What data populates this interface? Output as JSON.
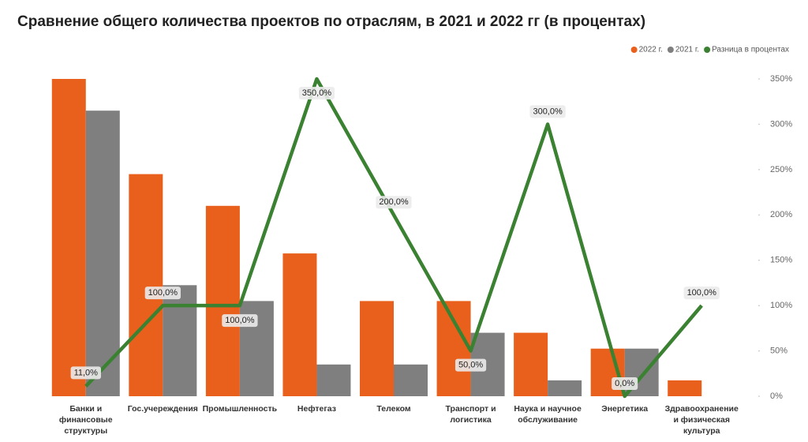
{
  "chart_data": {
    "type": "bar",
    "title": "Сравнение общего количества проектов по отраслям, в 2021 и 2022 гг (в процентах)",
    "categories": [
      "Банки и финансовые структуры",
      "Гос.учереждения",
      "Промышленность",
      "Нефтегаз",
      "Телеком",
      "Транспорт и логистика",
      "Наука и научное обслуживание",
      "Энергетика",
      "Здравоохранение и физическая культура"
    ],
    "series": [
      {
        "name": "2022 г.",
        "color": "#e8601c",
        "values": [
          20,
          14,
          12,
          9,
          6,
          6,
          4,
          3,
          1
        ]
      },
      {
        "name": "2021 г.",
        "color": "#7f7f7f",
        "values": [
          18,
          7,
          6,
          2,
          2,
          4,
          1,
          3,
          0
        ]
      },
      {
        "name": "Разница в процентах",
        "type": "line",
        "axis": "y2",
        "color": "#3b8132",
        "values": [
          11,
          100,
          100,
          350,
          200,
          50,
          300,
          0,
          100
        ],
        "value_labels": [
          "11,0%",
          "100,0%",
          "100,0%",
          "350,0%",
          "200,0%",
          "50,0%",
          "300,0%",
          "0,0%",
          "100,0%"
        ]
      }
    ],
    "ylim": [
      0,
      20
    ],
    "y2lim": [
      0,
      350
    ],
    "y2ticks": [
      {
        "value": 0,
        "label": "0%"
      },
      {
        "value": 50,
        "label": "50%"
      },
      {
        "value": 100,
        "label": "100%"
      },
      {
        "value": 150,
        "label": "150%"
      },
      {
        "value": 200,
        "label": "200%"
      },
      {
        "value": 250,
        "label": "250%"
      },
      {
        "value": 300,
        "label": "300%"
      },
      {
        "value": 350,
        "label": "350%"
      }
    ],
    "legend": "top-right"
  }
}
